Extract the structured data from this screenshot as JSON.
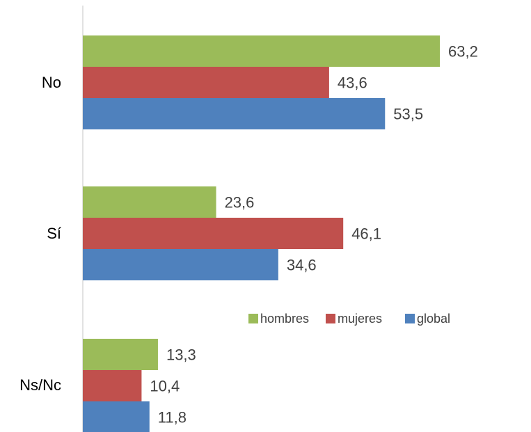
{
  "chart_data": {
    "type": "bar",
    "orientation": "horizontal",
    "categories": [
      "No",
      "Sí",
      "Ns/Nc"
    ],
    "series": [
      {
        "name": "hombres",
        "color": "#9bbb59",
        "values": [
          63.2,
          23.6,
          13.3
        ],
        "labels": [
          "63,2",
          "23,6",
          "13,3"
        ]
      },
      {
        "name": "mujeres",
        "color": "#c0504d",
        "values": [
          43.6,
          46.1,
          10.4
        ],
        "labels": [
          "43,6",
          "46,1",
          "10,4"
        ]
      },
      {
        "name": "global",
        "color": "#4f81bd",
        "values": [
          53.5,
          34.6,
          11.8
        ],
        "labels": [
          "53,5",
          "34,6",
          "11,8"
        ]
      }
    ],
    "xlim": [
      0,
      72
    ],
    "grid": false,
    "legend": "center-right"
  }
}
